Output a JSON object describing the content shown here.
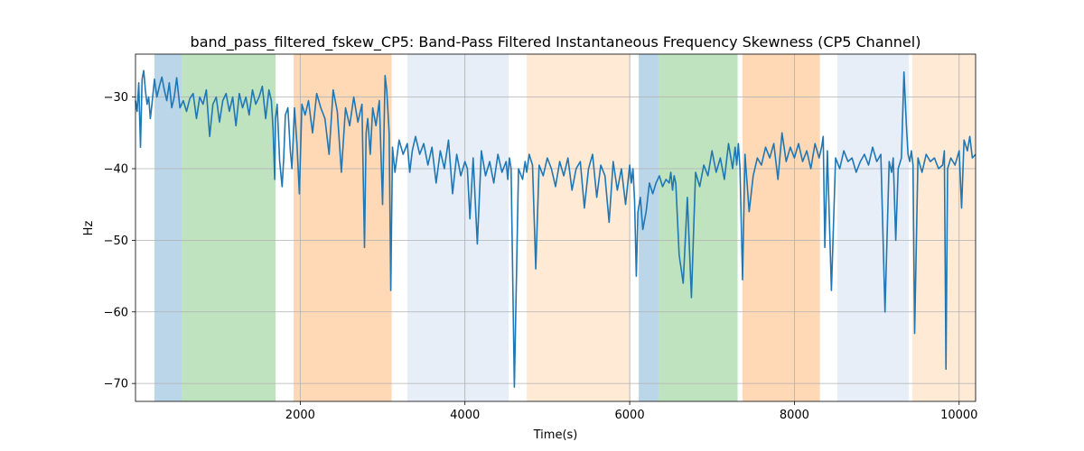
{
  "chart_data": {
    "type": "line",
    "title": "band_pass_filtered_fskew_CP5: Band-Pass Filtered Instantaneous Frequency Skewness (CP5 Channel)",
    "xlabel": "Time(s)",
    "ylabel": "Hz",
    "xlim": [
      0,
      10200
    ],
    "ylim": [
      -72.5,
      -24.0
    ],
    "xticks": [
      2000,
      4000,
      6000,
      8000,
      10000
    ],
    "yticks": [
      -30,
      -40,
      -50,
      -60,
      -70
    ],
    "grid": true,
    "line_color": "#1f77b4",
    "bands": [
      {
        "x0": 230,
        "x1": 560,
        "color": "#1f77b4",
        "opacity": 0.3
      },
      {
        "x0": 560,
        "x1": 1700,
        "color": "#2ca02c",
        "opacity": 0.3
      },
      {
        "x0": 1920,
        "x1": 3110,
        "color": "#ff7f0e",
        "opacity": 0.3
      },
      {
        "x0": 3300,
        "x1": 4530,
        "color": "#aec7e8",
        "opacity": 0.3
      },
      {
        "x0": 4750,
        "x1": 6010,
        "color": "#ffbb78",
        "opacity": 0.3
      },
      {
        "x0": 6110,
        "x1": 6350,
        "color": "#1f77b4",
        "opacity": 0.3
      },
      {
        "x0": 6350,
        "x1": 7310,
        "color": "#2ca02c",
        "opacity": 0.3
      },
      {
        "x0": 7370,
        "x1": 8310,
        "color": "#ff7f0e",
        "opacity": 0.3
      },
      {
        "x0": 8520,
        "x1": 9390,
        "color": "#aec7e8",
        "opacity": 0.3
      },
      {
        "x0": 9430,
        "x1": 10200,
        "color": "#ffbb78",
        "opacity": 0.3
      }
    ],
    "series": [
      {
        "x": [
          0,
          20,
          40,
          60,
          80,
          100,
          120,
          140,
          160,
          180,
          200,
          230,
          260,
          290,
          320,
          350,
          380,
          410,
          440,
          470,
          500,
          540,
          580,
          620,
          660,
          700,
          740,
          780,
          820,
          860,
          900,
          940,
          980,
          1020,
          1060,
          1100,
          1140,
          1180,
          1220,
          1260,
          1300,
          1340,
          1380,
          1420,
          1460,
          1500,
          1540,
          1580,
          1620,
          1650,
          1670,
          1690,
          1700,
          1720,
          1750,
          1780,
          1800,
          1820,
          1850,
          1880,
          1900,
          1930,
          1960,
          1990,
          2020,
          2060,
          2100,
          2150,
          2200,
          2250,
          2300,
          2350,
          2400,
          2450,
          2500,
          2550,
          2600,
          2650,
          2700,
          2750,
          2780,
          2800,
          2820,
          2850,
          2880,
          2920,
          2960,
          3000,
          3030,
          3050,
          3080,
          3100,
          3120,
          3150,
          3200,
          3250,
          3300,
          3330,
          3360,
          3400,
          3450,
          3500,
          3550,
          3600,
          3650,
          3700,
          3750,
          3800,
          3850,
          3900,
          3950,
          4000,
          4030,
          4060,
          4100,
          4150,
          4200,
          4250,
          4300,
          4350,
          4400,
          4450,
          4500,
          4520,
          4540,
          4560,
          4600,
          4650,
          4700,
          4730,
          4750,
          4780,
          4820,
          4860,
          4900,
          4950,
          5000,
          5050,
          5100,
          5150,
          5200,
          5250,
          5300,
          5350,
          5400,
          5450,
          5500,
          5550,
          5600,
          5650,
          5700,
          5750,
          5800,
          5850,
          5900,
          5950,
          6000,
          6020,
          6040,
          6060,
          6080,
          6100,
          6130,
          6160,
          6200,
          6240,
          6280,
          6320,
          6360,
          6400,
          6440,
          6480,
          6500,
          6520,
          6540,
          6560,
          6600,
          6650,
          6700,
          6750,
          6800,
          6850,
          6900,
          6950,
          7000,
          7050,
          7100,
          7150,
          7200,
          7250,
          7280,
          7300,
          7320,
          7340,
          7370,
          7400,
          7450,
          7500,
          7550,
          7600,
          7650,
          7700,
          7750,
          7800,
          7850,
          7900,
          7950,
          8000,
          8050,
          8100,
          8150,
          8200,
          8250,
          8300,
          8330,
          8350,
          8370,
          8400,
          8450,
          8500,
          8550,
          8600,
          8650,
          8700,
          8750,
          8800,
          8850,
          8900,
          8950,
          9000,
          9050,
          9100,
          9150,
          9180,
          9200,
          9230,
          9260,
          9300,
          9330,
          9360,
          9380,
          9400,
          9420,
          9440,
          9460,
          9500,
          9550,
          9600,
          9650,
          9700,
          9750,
          9800,
          9820,
          9840,
          9860,
          9900,
          9950,
          10000,
          10030,
          10060,
          10100,
          10130,
          10160,
          10200
        ],
        "y": [
          -30.5,
          -32.0,
          -28.0,
          -37.0,
          -27.5,
          -26.3,
          -29.0,
          -31.0,
          -30.0,
          -33.0,
          -31.0,
          -27.5,
          -30.0,
          -28.5,
          -27.2,
          -29.0,
          -30.5,
          -28.0,
          -31.5,
          -30.0,
          -27.3,
          -31.5,
          -30.5,
          -32.0,
          -30.2,
          -29.5,
          -33.0,
          -30.0,
          -31.0,
          -29.0,
          -35.5,
          -31.0,
          -30.0,
          -33.5,
          -30.5,
          -29.5,
          -32.0,
          -30.0,
          -34.0,
          -29.5,
          -31.5,
          -30.0,
          -32.5,
          -29.0,
          -31.0,
          -30.0,
          -28.5,
          -33.0,
          -29.0,
          -30.5,
          -34.5,
          -41.5,
          -33.0,
          -31.0,
          -39.0,
          -42.5,
          -38.5,
          -32.5,
          -31.5,
          -37.5,
          -40.0,
          -31.5,
          -36.5,
          -43.5,
          -31.0,
          -32.5,
          -30.5,
          -35.0,
          -29.5,
          -31.5,
          -33.0,
          -38.0,
          -29.0,
          -32.0,
          -40.5,
          -31.5,
          -34.0,
          -30.0,
          -33.5,
          -31.0,
          -51.0,
          -35.0,
          -33.0,
          -38.0,
          -31.5,
          -34.0,
          -30.5,
          -45.0,
          -27.0,
          -29.0,
          -35.0,
          -57.0,
          -37.0,
          -40.5,
          -36.0,
          -38.0,
          -36.5,
          -40.5,
          -37.5,
          -35.5,
          -38.0,
          -36.5,
          -39.5,
          -37.0,
          -42.0,
          -37.5,
          -40.0,
          -36.0,
          -43.5,
          -38.0,
          -41.0,
          -39.0,
          -40.0,
          -47.0,
          -38.5,
          -50.5,
          -37.5,
          -41.0,
          -39.0,
          -42.0,
          -38.0,
          -40.5,
          -39.0,
          -41.5,
          -38.5,
          -40.0,
          -70.5,
          -40.0,
          -41.5,
          -39.0,
          -40.5,
          -38.0,
          -39.5,
          -54.0,
          -39.5,
          -41.0,
          -38.5,
          -40.0,
          -42.5,
          -39.0,
          -41.0,
          -38.5,
          -43.0,
          -40.0,
          -39.0,
          -45.5,
          -40.0,
          -38.0,
          -44.0,
          -39.5,
          -41.0,
          -47.5,
          -39.0,
          -43.0,
          -40.0,
          -45.0,
          -39.5,
          -42.0,
          -40.0,
          -44.5,
          -55.0,
          -46.0,
          -44.0,
          -48.5,
          -46.0,
          -42.0,
          -43.5,
          -42.0,
          -41.0,
          -42.5,
          -41.5,
          -42.0,
          -40.5,
          -43.0,
          -41.0,
          -42.0,
          -52.0,
          -56.0,
          -44.0,
          -58.0,
          -40.5,
          -42.5,
          -39.5,
          -41.0,
          -37.5,
          -40.5,
          -38.5,
          -41.5,
          -36.5,
          -40.0,
          -37.0,
          -39.5,
          -36.5,
          -40.0,
          -55.5,
          -38.0,
          -46.0,
          -41.0,
          -38.5,
          -39.5,
          -37.0,
          -38.5,
          -36.5,
          -41.5,
          -35.0,
          -39.0,
          -37.0,
          -38.5,
          -36.5,
          -39.0,
          -37.5,
          -40.0,
          -36.5,
          -38.5,
          -37.0,
          -35.5,
          -51.0,
          -37.5,
          -57.0,
          -38.5,
          -40.0,
          -37.5,
          -39.0,
          -38.5,
          -40.5,
          -39.0,
          -38.0,
          -39.5,
          -37.0,
          -39.0,
          -38.0,
          -60.0,
          -39.0,
          -40.5,
          -38.5,
          -50.0,
          -40.0,
          -38.5,
          -26.5,
          -34.0,
          -38.0,
          -39.0,
          -37.5,
          -39.5,
          -63.0,
          -38.5,
          -40.5,
          -38.0,
          -39.0,
          -38.5,
          -40.0,
          -39.5,
          -37.5,
          -68.0,
          -40.0,
          -38.5,
          -39.5,
          -37.5,
          -45.5,
          -36.0,
          -37.5,
          -35.5,
          -38.5,
          -38.0
        ]
      }
    ]
  }
}
